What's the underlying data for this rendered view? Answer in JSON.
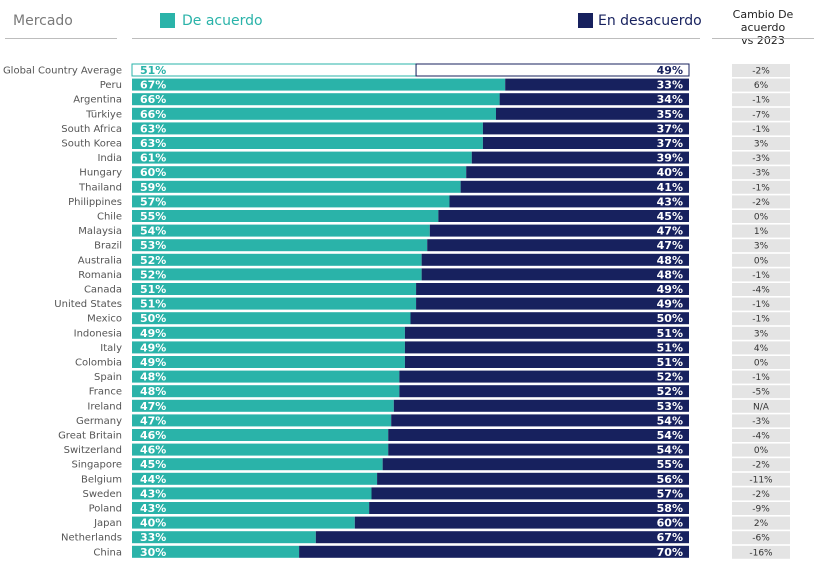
{
  "header": {
    "market_label": "Mercado",
    "agree_label": "De acuerdo",
    "disagree_label": "En desacuerdo",
    "change_label_line1": "Cambio De acuerdo",
    "change_label_line2": "vs 2023"
  },
  "colors": {
    "agree": "#2ab3a9",
    "disagree": "#17215e",
    "change_bg": "#e4e4e4",
    "highlight_bg": "#ffffff"
  },
  "chart_data": {
    "type": "bar",
    "orientation": "horizontal-stacked-100",
    "categories": [
      "Global Country Average",
      "Peru",
      "Argentina",
      "Türkiye",
      "South Africa",
      "South Korea",
      "India",
      "Hungary",
      "Thailand",
      "Philippines",
      "Chile",
      "Malaysia",
      "Brazil",
      "Australia",
      "Romania",
      "Canada",
      "United States",
      "Mexico",
      "Indonesia",
      "Italy",
      "Colombia",
      "Spain",
      "France",
      "Ireland",
      "Germany",
      "Great Britain",
      "Switzerland",
      "Singapore",
      "Belgium",
      "Sweden",
      "Poland",
      "Japan",
      "Netherlands",
      "China"
    ],
    "series": [
      {
        "name": "De acuerdo",
        "values": [
          51,
          67,
          66,
          66,
          63,
          63,
          61,
          60,
          59,
          57,
          55,
          54,
          53,
          52,
          52,
          51,
          51,
          50,
          49,
          49,
          49,
          48,
          48,
          47,
          47,
          46,
          46,
          45,
          44,
          43,
          43,
          40,
          33,
          30
        ]
      },
      {
        "name": "En desacuerdo",
        "values": [
          49,
          33,
          34,
          35,
          37,
          37,
          39,
          40,
          41,
          43,
          45,
          47,
          47,
          48,
          48,
          49,
          49,
          50,
          51,
          51,
          51,
          52,
          52,
          53,
          54,
          54,
          54,
          55,
          56,
          57,
          58,
          60,
          67,
          70
        ]
      }
    ],
    "value_labels": {
      "agree": [
        "51%",
        "67%",
        "66%",
        "66%",
        "63%",
        "63%",
        "61%",
        "60%",
        "59%",
        "57%",
        "55%",
        "54%",
        "53%",
        "52%",
        "52%",
        "51%",
        "51%",
        "50%",
        "49%",
        "49%",
        "49%",
        "48%",
        "48%",
        "47%",
        "47%",
        "46%",
        "46%",
        "45%",
        "44%",
        "43%",
        "43%",
        "40%",
        "33%",
        "30%"
      ],
      "disagree": [
        "49%",
        "33%",
        "34%",
        "35%",
        "37%",
        "37%",
        "39%",
        "40%",
        "41%",
        "43%",
        "45%",
        "47%",
        "47%",
        "48%",
        "48%",
        "49%",
        "49%",
        "50%",
        "51%",
        "51%",
        "51%",
        "52%",
        "52%",
        "53%",
        "54%",
        "54%",
        "54%",
        "55%",
        "56%",
        "57%",
        "58%",
        "60%",
        "67%",
        "70%"
      ]
    },
    "change_vs_2023": [
      "-2%",
      "6%",
      "-1%",
      "-7%",
      "-1%",
      "3%",
      "-3%",
      "-3%",
      "-1%",
      "-2%",
      "0%",
      "1%",
      "3%",
      "0%",
      "-1%",
      "-4%",
      "-1%",
      "-1%",
      "3%",
      "4%",
      "0%",
      "-1%",
      "-5%",
      "N/A",
      "-3%",
      "-4%",
      "0%",
      "-2%",
      "-11%",
      "-2%",
      "-9%",
      "2%",
      "-6%",
      "-16%"
    ],
    "xlim": [
      0,
      100
    ]
  }
}
